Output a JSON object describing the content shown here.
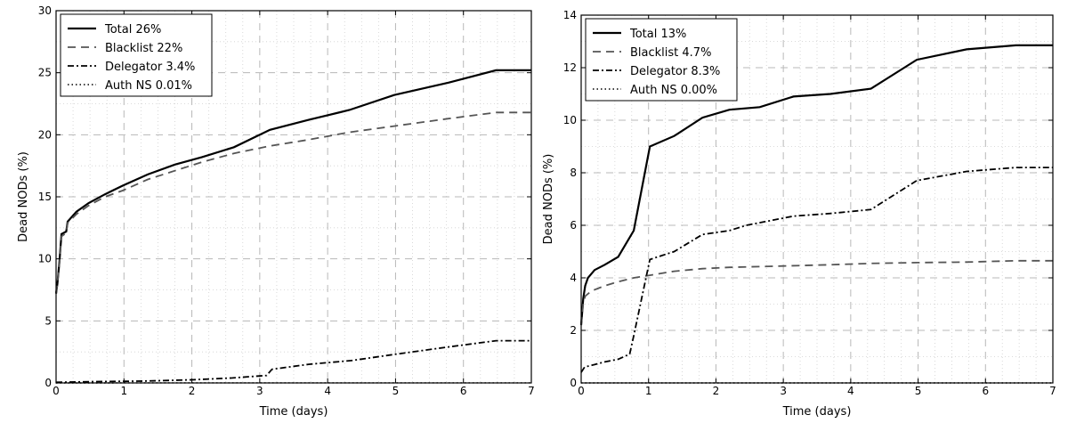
{
  "chart_data": [
    {
      "type": "line",
      "xlabel": "Time (days)",
      "ylabel": "Dead NODs (%)",
      "xlim": [
        0,
        7
      ],
      "ylim": [
        0,
        30
      ],
      "x_ticks": [
        0,
        1,
        2,
        3,
        4,
        5,
        6,
        7
      ],
      "y_ticks": [
        0,
        5,
        10,
        15,
        20,
        25,
        30
      ],
      "grid": true,
      "legend_position": "top-left",
      "series": [
        {
          "name": "Total 26%",
          "style": "solid",
          "color": "#000000",
          "points": [
            [
              0,
              7.2
            ],
            [
              0.02,
              8.0
            ],
            [
              0.05,
              9.8
            ],
            [
              0.08,
              12.0
            ],
            [
              0.15,
              12.2
            ],
            [
              0.17,
              13.0
            ],
            [
              0.3,
              13.8
            ],
            [
              0.48,
              14.5
            ],
            [
              0.72,
              15.2
            ],
            [
              0.98,
              15.9
            ],
            [
              1.35,
              16.8
            ],
            [
              1.75,
              17.6
            ],
            [
              2.15,
              18.2
            ],
            [
              2.62,
              19.0
            ],
            [
              3.15,
              20.4
            ],
            [
              3.72,
              21.2
            ],
            [
              4.32,
              22.0
            ],
            [
              4.98,
              23.2
            ],
            [
              5.78,
              24.2
            ],
            [
              6.48,
              25.2
            ],
            [
              7.0,
              25.2
            ]
          ]
        },
        {
          "name": "Blacklist 22%",
          "style": "dashed",
          "color": "#555555",
          "points": [
            [
              0,
              7.2
            ],
            [
              0.02,
              8.0
            ],
            [
              0.05,
              9.7
            ],
            [
              0.08,
              11.8
            ],
            [
              0.15,
              12.1
            ],
            [
              0.17,
              12.9
            ],
            [
              0.3,
              13.6
            ],
            [
              0.48,
              14.3
            ],
            [
              0.72,
              15.0
            ],
            [
              0.98,
              15.5
            ],
            [
              1.35,
              16.4
            ],
            [
              1.75,
              17.1
            ],
            [
              2.15,
              17.8
            ],
            [
              2.62,
              18.5
            ],
            [
              3.15,
              19.1
            ],
            [
              3.72,
              19.6
            ],
            [
              4.32,
              20.2
            ],
            [
              4.98,
              20.7
            ],
            [
              5.78,
              21.3
            ],
            [
              6.48,
              21.8
            ],
            [
              7.0,
              21.8
            ]
          ]
        },
        {
          "name": "Delegator 3.4%",
          "style": "dashdot",
          "color": "#000000",
          "points": [
            [
              0,
              0.05
            ],
            [
              0.5,
              0.1
            ],
            [
              1.3,
              0.15
            ],
            [
              2.0,
              0.25
            ],
            [
              2.6,
              0.4
            ],
            [
              3.1,
              0.6
            ],
            [
              3.18,
              1.1
            ],
            [
              3.72,
              1.5
            ],
            [
              4.35,
              1.8
            ],
            [
              4.98,
              2.3
            ],
            [
              5.78,
              2.9
            ],
            [
              6.48,
              3.4
            ],
            [
              7.0,
              3.4
            ]
          ]
        },
        {
          "name": "Auth NS 0.01%",
          "style": "dotted",
          "color": "#000000",
          "points": [
            [
              0,
              0.0
            ],
            [
              7.0,
              0.01
            ]
          ]
        }
      ]
    },
    {
      "type": "line",
      "xlabel": "Time (days)",
      "ylabel": "Dead NODs (%)",
      "xlim": [
        0,
        7
      ],
      "ylim": [
        0,
        14
      ],
      "x_ticks": [
        0,
        1,
        2,
        3,
        4,
        5,
        6,
        7
      ],
      "y_ticks": [
        0,
        2,
        4,
        6,
        8,
        10,
        12,
        14
      ],
      "grid": true,
      "legend_position": "top-left",
      "series": [
        {
          "name": "Total 13%",
          "style": "solid",
          "color": "#000000",
          "points": [
            [
              0,
              2.2
            ],
            [
              0.03,
              3.2
            ],
            [
              0.06,
              3.7
            ],
            [
              0.1,
              4.0
            ],
            [
              0.2,
              4.3
            ],
            [
              0.35,
              4.5
            ],
            [
              0.55,
              4.8
            ],
            [
              0.78,
              5.8
            ],
            [
              1.02,
              9.0
            ],
            [
              1.38,
              9.4
            ],
            [
              1.8,
              10.1
            ],
            [
              2.2,
              10.4
            ],
            [
              2.65,
              10.5
            ],
            [
              3.15,
              10.9
            ],
            [
              3.7,
              11.0
            ],
            [
              4.3,
              11.2
            ],
            [
              4.98,
              12.3
            ],
            [
              5.72,
              12.7
            ],
            [
              6.45,
              12.85
            ],
            [
              7.0,
              12.85
            ]
          ]
        },
        {
          "name": "Blacklist 4.7%",
          "style": "dashed",
          "color": "#555555",
          "points": [
            [
              0,
              2.2
            ],
            [
              0.03,
              3.0
            ],
            [
              0.06,
              3.3
            ],
            [
              0.15,
              3.5
            ],
            [
              0.35,
              3.7
            ],
            [
              0.55,
              3.85
            ],
            [
              0.78,
              4.0
            ],
            [
              1.02,
              4.1
            ],
            [
              1.38,
              4.25
            ],
            [
              1.8,
              4.35
            ],
            [
              2.2,
              4.4
            ],
            [
              3.0,
              4.45
            ],
            [
              3.7,
              4.5
            ],
            [
              4.3,
              4.55
            ],
            [
              4.98,
              4.58
            ],
            [
              5.72,
              4.6
            ],
            [
              6.45,
              4.65
            ],
            [
              7.0,
              4.65
            ]
          ]
        },
        {
          "name": "Delegator 8.3%",
          "style": "dashdot",
          "color": "#000000",
          "points": [
            [
              0,
              0.4
            ],
            [
              0.05,
              0.6
            ],
            [
              0.12,
              0.65
            ],
            [
              0.2,
              0.7
            ],
            [
              0.35,
              0.8
            ],
            [
              0.55,
              0.9
            ],
            [
              0.72,
              1.1
            ],
            [
              0.78,
              1.8
            ],
            [
              1.02,
              4.7
            ],
            [
              1.2,
              4.85
            ],
            [
              1.38,
              5.0
            ],
            [
              1.8,
              5.65
            ],
            [
              2.2,
              5.8
            ],
            [
              2.45,
              6.0
            ],
            [
              3.15,
              6.35
            ],
            [
              3.7,
              6.45
            ],
            [
              4.3,
              6.6
            ],
            [
              4.98,
              7.7
            ],
            [
              5.72,
              8.05
            ],
            [
              6.45,
              8.2
            ],
            [
              7.0,
              8.2
            ]
          ]
        },
        {
          "name": "Auth NS 0.00%",
          "style": "dotted",
          "color": "#000000",
          "points": [
            [
              0,
              0.0
            ],
            [
              7.0,
              0.0
            ]
          ]
        }
      ]
    }
  ]
}
